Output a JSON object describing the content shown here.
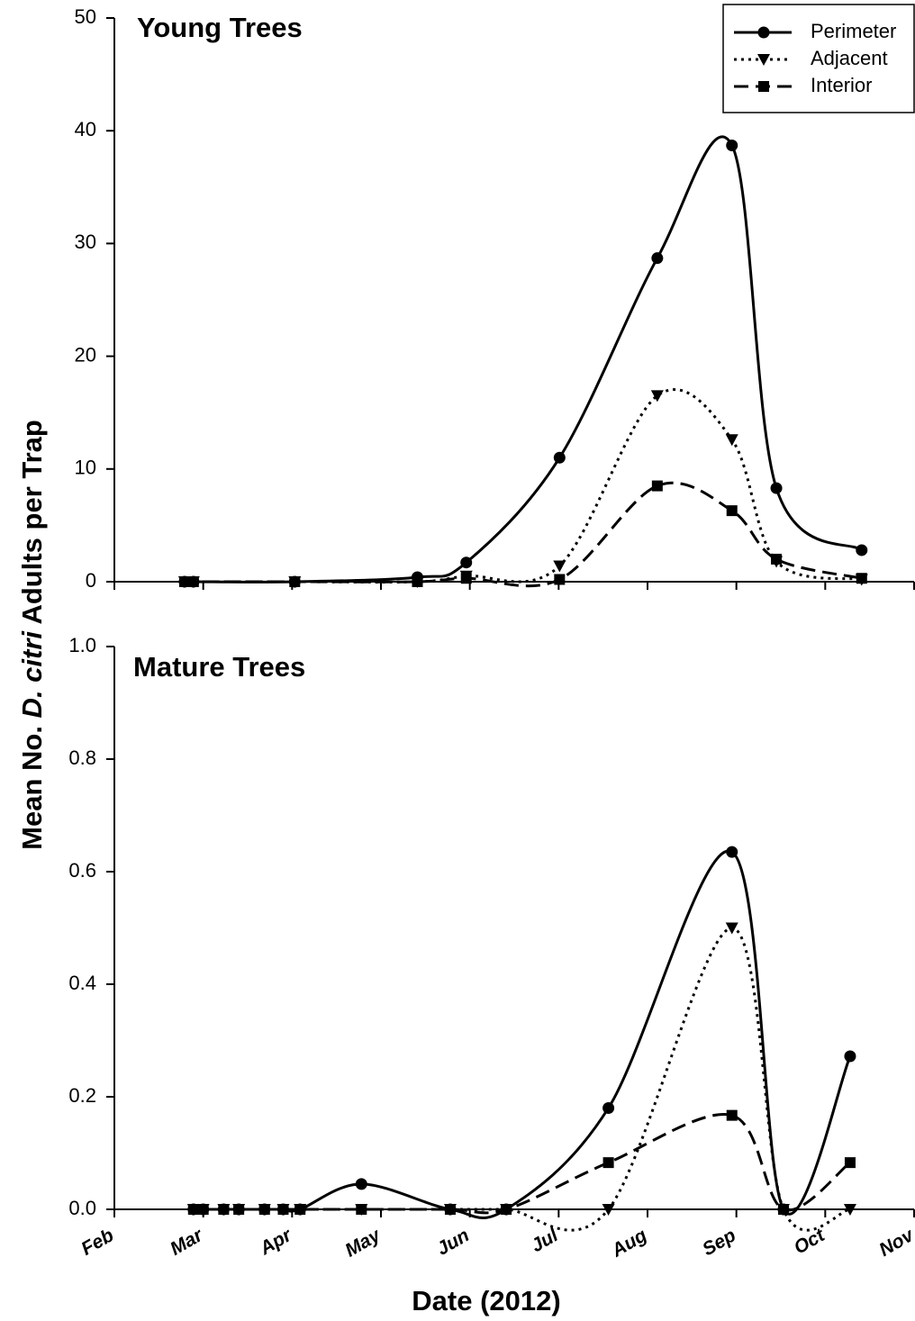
{
  "ylabel": {
    "before": "Mean No.",
    "italic": "D. citri",
    "after": "Adults per Trap"
  },
  "xlabel": "Date (2012)",
  "chart_data": [
    {
      "type": "line",
      "title": "Young Trees",
      "x": [
        2.79,
        2.89,
        4.03,
        5.41,
        5.96,
        7.01,
        8.11,
        8.95,
        9.45,
        10.41
      ],
      "xlim": [
        2,
        11
      ],
      "ylim": [
        0,
        50
      ],
      "yticks": [
        0,
        10,
        20,
        30,
        40,
        50
      ],
      "legend": "upper right",
      "series": [
        {
          "name": "Perimeter",
          "color": "#000000",
          "dash": "solid",
          "marker": "circle",
          "values": [
            0,
            0,
            0,
            0.4,
            1.7,
            11,
            28.7,
            38.7,
            8.3,
            2.8
          ]
        },
        {
          "name": "Adjacent",
          "color": "#000000",
          "dash": "dotted",
          "marker": "triangle",
          "values": [
            0,
            0,
            0,
            0,
            0.5,
            1.4,
            16.5,
            12.6,
            1.8,
            0.2
          ]
        },
        {
          "name": "Interior",
          "color": "#000000",
          "dash": "dashed",
          "marker": "square",
          "values": [
            0,
            0,
            0,
            0,
            0.3,
            0.2,
            8.5,
            6.3,
            2.0,
            0.3
          ]
        }
      ]
    },
    {
      "type": "line",
      "title": "Mature Trees",
      "x": [
        2.89,
        3.0,
        3.23,
        3.4,
        3.69,
        3.9,
        4.09,
        4.78,
        5.78,
        6.41,
        7.56,
        8.95,
        9.53,
        10.28
      ],
      "xlim": [
        2,
        11
      ],
      "xticks": [
        {
          "value": 2,
          "label": "Feb"
        },
        {
          "value": 3,
          "label": "Mar"
        },
        {
          "value": 4,
          "label": "Apr"
        },
        {
          "value": 5,
          "label": "May"
        },
        {
          "value": 6,
          "label": "Jun"
        },
        {
          "value": 7,
          "label": "Jul"
        },
        {
          "value": 8,
          "label": "Aug"
        },
        {
          "value": 9,
          "label": "Sep"
        },
        {
          "value": 10,
          "label": "Oct"
        },
        {
          "value": 11,
          "label": "Nov"
        }
      ],
      "ylim": [
        0,
        1
      ],
      "yticks": [
        {
          "value": 0,
          "label": "0.0"
        },
        0.2,
        0.4,
        0.6,
        0.8,
        {
          "value": 1,
          "label": "1.0"
        }
      ],
      "series": [
        {
          "name": "Perimeter",
          "color": "#000000",
          "dash": "solid",
          "marker": "circle",
          "values": [
            0,
            0,
            0,
            0,
            0,
            0,
            0,
            0.045,
            0,
            0,
            0.18,
            0.635,
            0,
            0.272
          ]
        },
        {
          "name": "Adjacent",
          "color": "#000000",
          "dash": "dotted",
          "marker": "triangle",
          "values": [
            0,
            0,
            0,
            0,
            0,
            0,
            0,
            0,
            0,
            0,
            0,
            0.5,
            0,
            0
          ]
        },
        {
          "name": "Interior",
          "color": "#000000",
          "dash": "dashed",
          "marker": "square",
          "values": [
            0,
            0,
            0,
            0,
            0,
            0,
            0,
            0,
            0,
            0,
            0.083,
            0.167,
            0,
            0.083
          ]
        }
      ]
    }
  ]
}
